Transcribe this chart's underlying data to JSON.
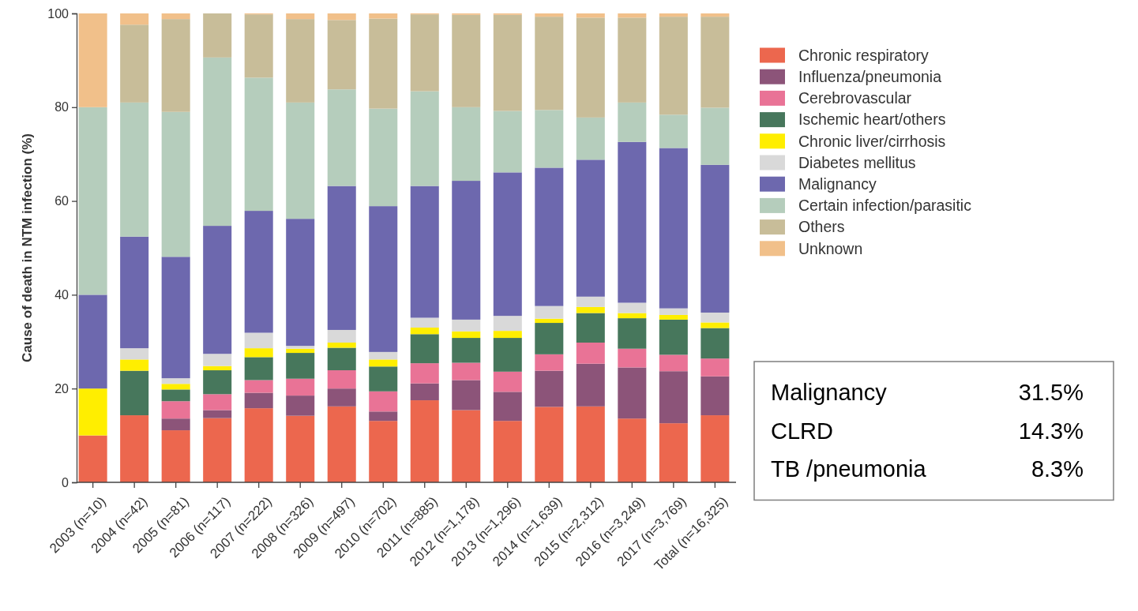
{
  "chart_data": {
    "type": "bar",
    "stacked": true,
    "ylabel": "Cause of death in NTM infection (%)",
    "categories": [
      "2003 (n=10)",
      "2004 (n=42)",
      "2005 (n=81)",
      "2006 (n=117)",
      "2007 (n=222)",
      "2008 (n=326)",
      "2009 (n=497)",
      "2010 (n=702)",
      "2011 (n=885)",
      "2012 (n=1,178)",
      "2013 (n=1,296)",
      "2014 (n=1,639)",
      "2015 (n=2,312)",
      "2016 (n=3,249)",
      "2017 (n=3,769)",
      "Total (n=16,325)"
    ],
    "series": [
      {
        "name": "Chronic respiratory",
        "color": "#ec674e",
        "values": [
          10,
          14.3,
          11.1,
          13.7,
          15.8,
          14.2,
          16.2,
          13.1,
          17.5,
          15.4,
          13.1,
          16.1,
          16.2,
          13.6,
          12.6,
          14.3
        ]
      },
      {
        "name": "Influenza/pneumonia",
        "color": "#8c5479",
        "values": [
          0,
          0,
          2.5,
          1.7,
          3.3,
          4.3,
          3.8,
          2.0,
          3.6,
          6.4,
          6.2,
          7.7,
          9.1,
          10.9,
          11.1,
          8.3
        ]
      },
      {
        "name": "Cerebrovascular",
        "color": "#e97396",
        "values": [
          0,
          0,
          3.7,
          3.4,
          2.7,
          3.6,
          3.9,
          4.3,
          4.3,
          3.7,
          4.3,
          3.5,
          4.5,
          4.0,
          3.5,
          3.8
        ]
      },
      {
        "name": "Ischemic heart/others",
        "color": "#47775c",
        "values": [
          0,
          9.5,
          2.5,
          5.1,
          4.9,
          5.5,
          4.8,
          5.3,
          6.2,
          5.3,
          7.2,
          6.7,
          6.3,
          6.5,
          7.5,
          6.5
        ]
      },
      {
        "name": "Chronic liver/cirrhosis",
        "color": "#ffee00",
        "values": [
          10,
          2.4,
          1.2,
          0.9,
          1.9,
          0.9,
          1.1,
          1.5,
          1.4,
          1.4,
          1.5,
          0.9,
          1.3,
          1.1,
          1.0,
          1.2
        ]
      },
      {
        "name": "Diabetes mellitus",
        "color": "#d9d9d9",
        "values": [
          0,
          2.4,
          1.2,
          2.6,
          3.3,
          0.6,
          2.7,
          1.6,
          2.1,
          2.5,
          3.2,
          2.7,
          2.2,
          2.2,
          1.4,
          2.1
        ]
      },
      {
        "name": "Malignancy",
        "color": "#6d68ae",
        "values": [
          20,
          23.8,
          25.9,
          27.3,
          26.0,
          27.1,
          30.7,
          31.1,
          28.1,
          29.6,
          30.6,
          29.5,
          29.2,
          34.3,
          34.2,
          31.5
        ]
      },
      {
        "name": "Certain infection/parasitic",
        "color": "#b5cdbc",
        "values": [
          40,
          28.6,
          30.9,
          35.9,
          28.4,
          24.8,
          20.6,
          20.8,
          20.2,
          15.7,
          13.1,
          12.3,
          9.0,
          8.4,
          7.1,
          12.2
        ]
      },
      {
        "name": "Others",
        "color": "#c8bd99",
        "values": [
          0,
          16.6,
          19.8,
          9.4,
          13.5,
          17.8,
          14.8,
          19.2,
          16.4,
          19.7,
          20.5,
          19.9,
          21.3,
          18.1,
          20.9,
          19.4
        ]
      },
      {
        "name": "Unknown",
        "color": "#f1c08a",
        "values": [
          20,
          2.4,
          1.2,
          0,
          0.2,
          1.2,
          1.4,
          1.1,
          0.2,
          0.3,
          0.3,
          0.7,
          0.9,
          0.9,
          0.7,
          0.7
        ]
      }
    ],
    "ylim": [
      0,
      100
    ],
    "yticks": [
      0,
      20,
      40,
      60,
      80,
      100
    ],
    "legend": "right",
    "annotations": [
      "Malignancy 31.5%",
      "CLRD 14.3%",
      "TB /pneumonia 8.3%"
    ]
  }
}
